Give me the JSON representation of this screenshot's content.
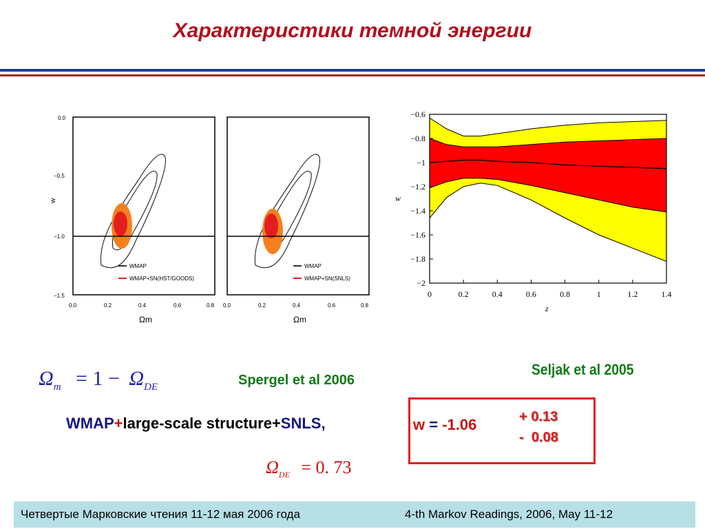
{
  "slide": {
    "title": "Характеристики темной энергии"
  },
  "left_plots": {
    "panels": [
      {
        "y_label": "w",
        "x_label": "Ωm",
        "x_ticks": [
          "0.0",
          "0.2",
          "0.4",
          "0.6",
          "0.8"
        ],
        "y_ticks": [
          "0.0",
          "−0.5",
          "−1.0",
          "−1.5"
        ],
        "legend": [
          "WMAP",
          "WMAP+SN(HST/GOODS)"
        ]
      },
      {
        "y_label": "",
        "x_label": "Ωm",
        "x_ticks": [
          "0.0",
          "0.2",
          "0.4",
          "0.6",
          "0.8"
        ],
        "y_ticks": [],
        "legend": [
          "WMAP",
          "WMAP+SN(SNLS)"
        ]
      }
    ]
  },
  "chart_data": {
    "type": "area",
    "xlabel": "z",
    "ylabel": "w",
    "xlim": [
      0,
      1.4
    ],
    "ylim": [
      -2,
      -0.6
    ],
    "x_ticks": [
      "0",
      "0.2",
      "0.4",
      "0.6",
      "0.8",
      "1",
      "1.2",
      "1.4"
    ],
    "y_ticks": [
      "−0.6",
      "−0.8",
      "−1",
      "−1.2",
      "−1.4",
      "−1.6",
      "−1.8",
      "−2"
    ],
    "x": [
      0,
      0.1,
      0.2,
      0.3,
      0.4,
      0.6,
      0.8,
      1.0,
      1.2,
      1.4
    ],
    "series": [
      {
        "band": "outer",
        "color": "#ffff00",
        "upper": [
          -0.63,
          -0.72,
          -0.78,
          -0.78,
          -0.76,
          -0.72,
          -0.69,
          -0.67,
          -0.66,
          -0.65
        ],
        "lower": [
          -1.46,
          -1.29,
          -1.2,
          -1.17,
          -1.19,
          -1.31,
          -1.46,
          -1.6,
          -1.71,
          -1.82
        ]
      },
      {
        "band": "inner",
        "color": "#ff0000",
        "upper": [
          -0.8,
          -0.85,
          -0.87,
          -0.87,
          -0.87,
          -0.85,
          -0.83,
          -0.82,
          -0.81,
          -0.8
        ],
        "lower": [
          -1.21,
          -1.16,
          -1.13,
          -1.13,
          -1.14,
          -1.19,
          -1.25,
          -1.31,
          -1.37,
          -1.41
        ]
      },
      {
        "band": "center",
        "color": "#000000",
        "values": [
          -1.0,
          -0.99,
          -0.98,
          -0.98,
          -0.99,
          -1.0,
          -1.02,
          -1.03,
          -1.04,
          -1.05
        ]
      }
    ]
  },
  "equations": {
    "omega_m": "Ω",
    "omega_m_sub": "m",
    "omega_m_rhs": "= 1 −",
    "omega_de": "Ω",
    "omega_de_sub": "DE",
    "omega_de_val": "= 0. 73"
  },
  "citations": {
    "spergel": "Spergel et al 2006",
    "seljak": "Seljak et al 2005"
  },
  "result": {
    "wmap": "WMAP",
    "plus1": "+",
    "lss": "large-scale structure+",
    "snls": "SNLS,",
    "w_label": "w",
    "w_eq": " = ",
    "w_value": "-1.06",
    "err_plus": "+ 0.13",
    "err_minus": "-  0.08"
  },
  "footer": {
    "left": "Четвертые Марковские чтения 11-12 мая 2006 года",
    "right": "4-th Markov Readings, 2006, May 11-12"
  },
  "colors": {
    "title": "#b0101e",
    "rule_blue": "#1f3f93",
    "rule_red": "#a01818",
    "footer_bg": "#b7dfe6"
  }
}
